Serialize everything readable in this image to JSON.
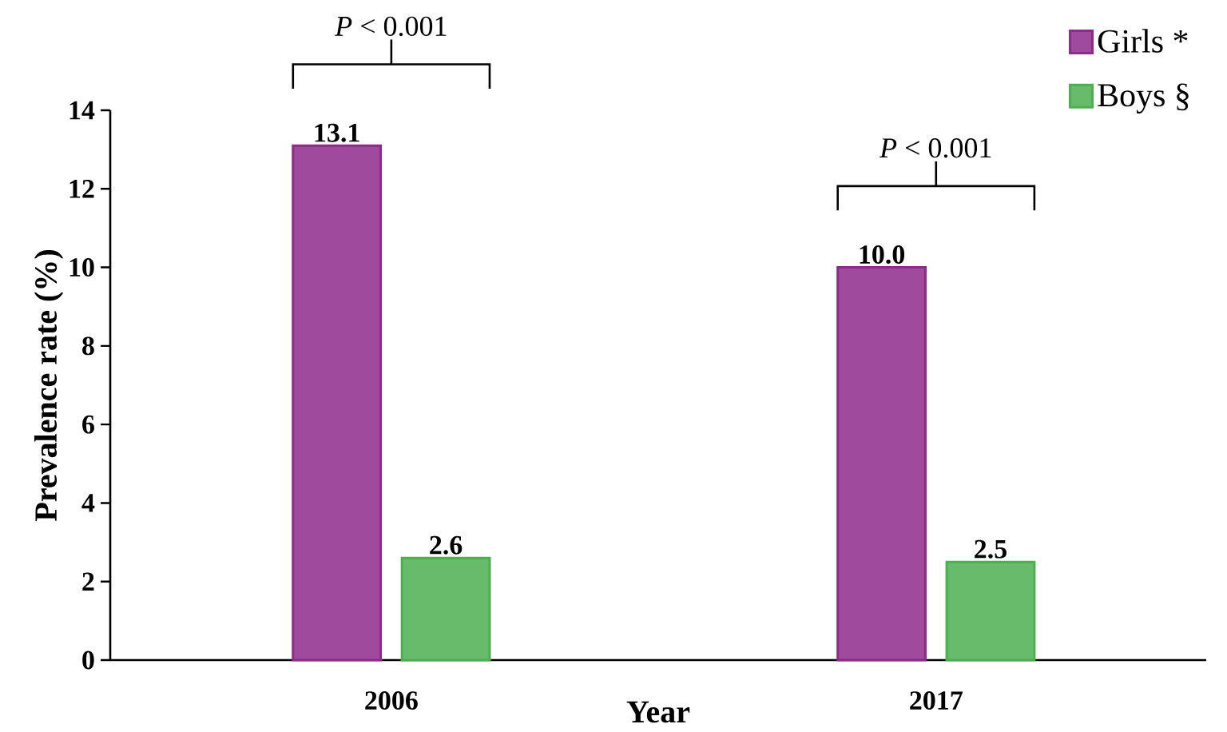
{
  "chart_data": {
    "type": "bar",
    "xlabel": "Year",
    "ylabel": "Prevalence rate (%)",
    "categories": [
      "2006",
      "2017"
    ],
    "series": [
      {
        "name": "Girls *",
        "color": "#8e2a8a",
        "values": [
          13.1,
          10.0
        ],
        "value_labels": [
          "13.1",
          "10.0"
        ]
      },
      {
        "name": "Boys §",
        "color": "#4caf50",
        "values": [
          2.6,
          2.5
        ],
        "value_labels": [
          "2.6",
          "2.5"
        ]
      }
    ],
    "ylim": [
      0,
      14
    ],
    "yticks": [
      0,
      2,
      4,
      6,
      8,
      10,
      12,
      14
    ],
    "legend": "top right",
    "annotations": [
      "*P* < 0.001",
      "*P* < 0.001"
    ]
  }
}
